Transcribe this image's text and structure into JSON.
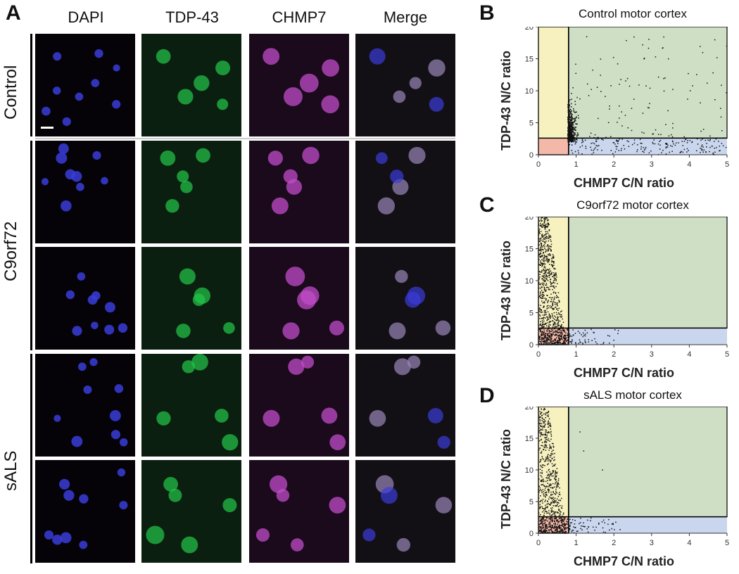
{
  "panel_a": {
    "letter": "A",
    "columns": [
      "DAPI",
      "TDP-43",
      "CHMP7",
      "Merge"
    ],
    "rows": [
      "Control",
      "C9orf72",
      "sALS"
    ],
    "colors": {
      "dapi": "#3a3cd8",
      "tdp43": "#22c84a",
      "chmp7": "#c04cc8",
      "merge": "#9a86b8",
      "arrow": "#ffffff",
      "star": "#ffffff"
    }
  },
  "chart_data": [
    {
      "panel": "B",
      "type": "scatter",
      "title": "Control motor cortex",
      "xlabel": "CHMP7 C/N ratio",
      "ylabel": "TDP-43 N/C ratio",
      "xlim": [
        0,
        5
      ],
      "ylim": [
        0,
        20
      ],
      "xticks": [
        "0",
        "1",
        "2",
        "3",
        "4",
        "5"
      ],
      "yticks": [
        "0",
        "5",
        "10",
        "15",
        "20"
      ],
      "gates": {
        "x": 0.8,
        "y": 2.6
      },
      "region_colors": {
        "upper_left": "#f7f1c0",
        "upper_right": "#cfdfc6",
        "lower_left": "#f4b8a8",
        "lower_right": "#c9d6ee"
      },
      "distribution": "control"
    },
    {
      "panel": "C",
      "type": "scatter",
      "title": "C9orf72 motor cortex",
      "xlabel": "CHMP7 C/N ratio",
      "ylabel": "TDP-43 N/C ratio",
      "xlim": [
        0,
        5
      ],
      "ylim": [
        0,
        20
      ],
      "xticks": [
        "0",
        "1",
        "2",
        "3",
        "4",
        "5"
      ],
      "yticks": [
        "0",
        "5",
        "10",
        "15",
        "20"
      ],
      "gates": {
        "x": 0.8,
        "y": 2.6
      },
      "region_colors": {
        "upper_left": "#f7f1c0",
        "upper_right": "#cfdfc6",
        "lower_left": "#f4b8a8",
        "lower_right": "#c9d6ee"
      },
      "distribution": "c9"
    },
    {
      "panel": "D",
      "type": "scatter",
      "title": "sALS motor cortex",
      "xlabel": "CHMP7 C/N ratio",
      "ylabel": "TDP-43 N/C ratio",
      "xlim": [
        0,
        5
      ],
      "ylim": [
        0,
        20
      ],
      "xticks": [
        "0",
        "1",
        "2",
        "3",
        "4",
        "5"
      ],
      "yticks": [
        "0",
        "5",
        "10",
        "15",
        "20"
      ],
      "gates": {
        "x": 0.8,
        "y": 2.6
      },
      "region_colors": {
        "upper_left": "#f7f1c0",
        "upper_right": "#cfdfc6",
        "lower_left": "#f4b8a8",
        "lower_right": "#c9d6ee"
      },
      "distribution": "sals"
    }
  ]
}
